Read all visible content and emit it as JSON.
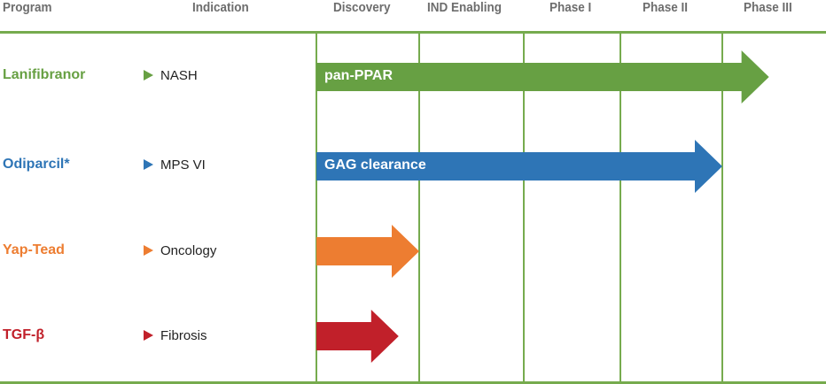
{
  "colors": {
    "grid": "#76ab4e",
    "green": "#67a043",
    "blue": "#2e75b6",
    "orange": "#ed7d31",
    "red": "#c1202a"
  },
  "header": {
    "program": "Program",
    "indication": "Indication",
    "phases": [
      "Discovery",
      "IND Enabling",
      "Phase I",
      "Phase II",
      "Phase III"
    ]
  },
  "rows": [
    {
      "program": "Lanifibranor",
      "indication": "NASH",
      "bar_label": "pan-PPAR",
      "color": "#67a043",
      "progress_phases": 4.45
    },
    {
      "program": "Odiparcil*",
      "indication": "MPS VI",
      "bar_label": "GAG clearance",
      "color": "#2e75b6",
      "progress_phases": 4.0
    },
    {
      "program": "Yap-Tead",
      "indication": "Oncology",
      "bar_label": "",
      "color": "#ed7d31",
      "progress_phases": 1.0
    },
    {
      "program": "TGF-β",
      "indication": "Fibrosis",
      "bar_label": "",
      "color": "#c1202a",
      "progress_phases": 0.8
    }
  ]
}
